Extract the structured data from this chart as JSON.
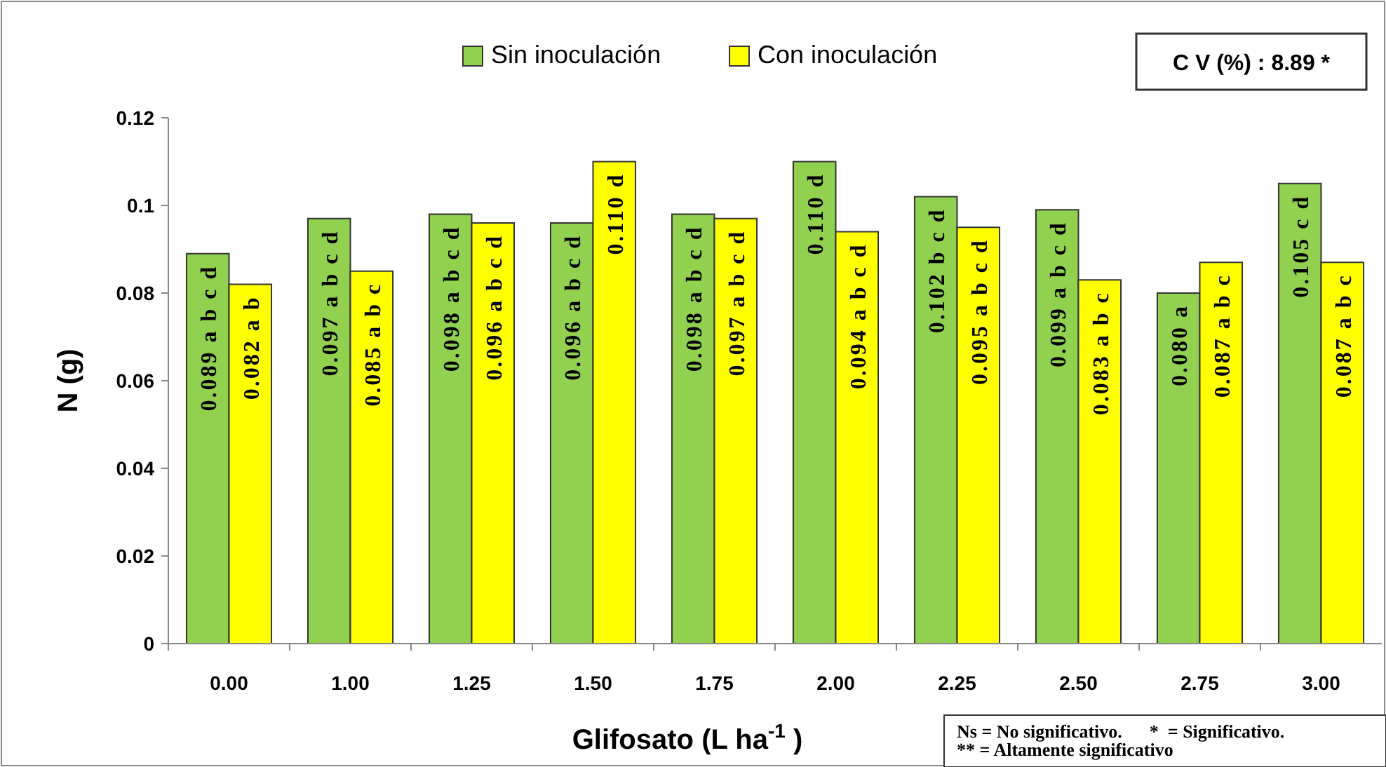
{
  "chart_data": {
    "type": "bar",
    "xlabel": "Glifosato  (L ha$^{-1}$ )",
    "ylabel": "N (g)",
    "categories": [
      "0.00",
      "1.00",
      "1.25",
      "1.50",
      "1.75",
      "2.00",
      "2.25",
      "2.50",
      "2.75",
      "3.00"
    ],
    "series": [
      {
        "name": "Sin inoculación",
        "color": "#92d050",
        "values": [
          0.089,
          0.097,
          0.098,
          0.096,
          0.098,
          0.11,
          0.102,
          0.099,
          0.08,
          0.105
        ],
        "value_labels": [
          "0.089 a b c d",
          "0.097 a b c d",
          "0.098 a b c d",
          "0.096 a b c d",
          "0.098 a b c d",
          "0.110 d",
          "0.102 b c d",
          "0.099 a b c d",
          "0.080 a",
          "0.105 c d"
        ]
      },
      {
        "name": "Con inoculación",
        "color": "#ffff00",
        "values": [
          0.082,
          0.085,
          0.096,
          0.11,
          0.097,
          0.094,
          0.095,
          0.083,
          0.087,
          0.087
        ],
        "value_labels": [
          "0.082 a b",
          "0.085 a b c",
          "0.096 a b c d",
          "0.110 d",
          "0.097 a b c d",
          "0.094 a b c d",
          "0.095 a b c d",
          "0.083 a b c",
          "0.087 a b c",
          "0.087 a b c"
        ]
      }
    ],
    "ylim": [
      0,
      0.12
    ],
    "yticks": [
      0,
      0.02,
      0.04,
      0.06,
      0.08,
      0.1,
      0.12
    ],
    "grid": false,
    "legend": "top",
    "annotations": [
      "C V (%) :  8.89  *",
      "Ns = No significativo.      *  = Significativo.",
      "** = Altamente significativo"
    ]
  }
}
